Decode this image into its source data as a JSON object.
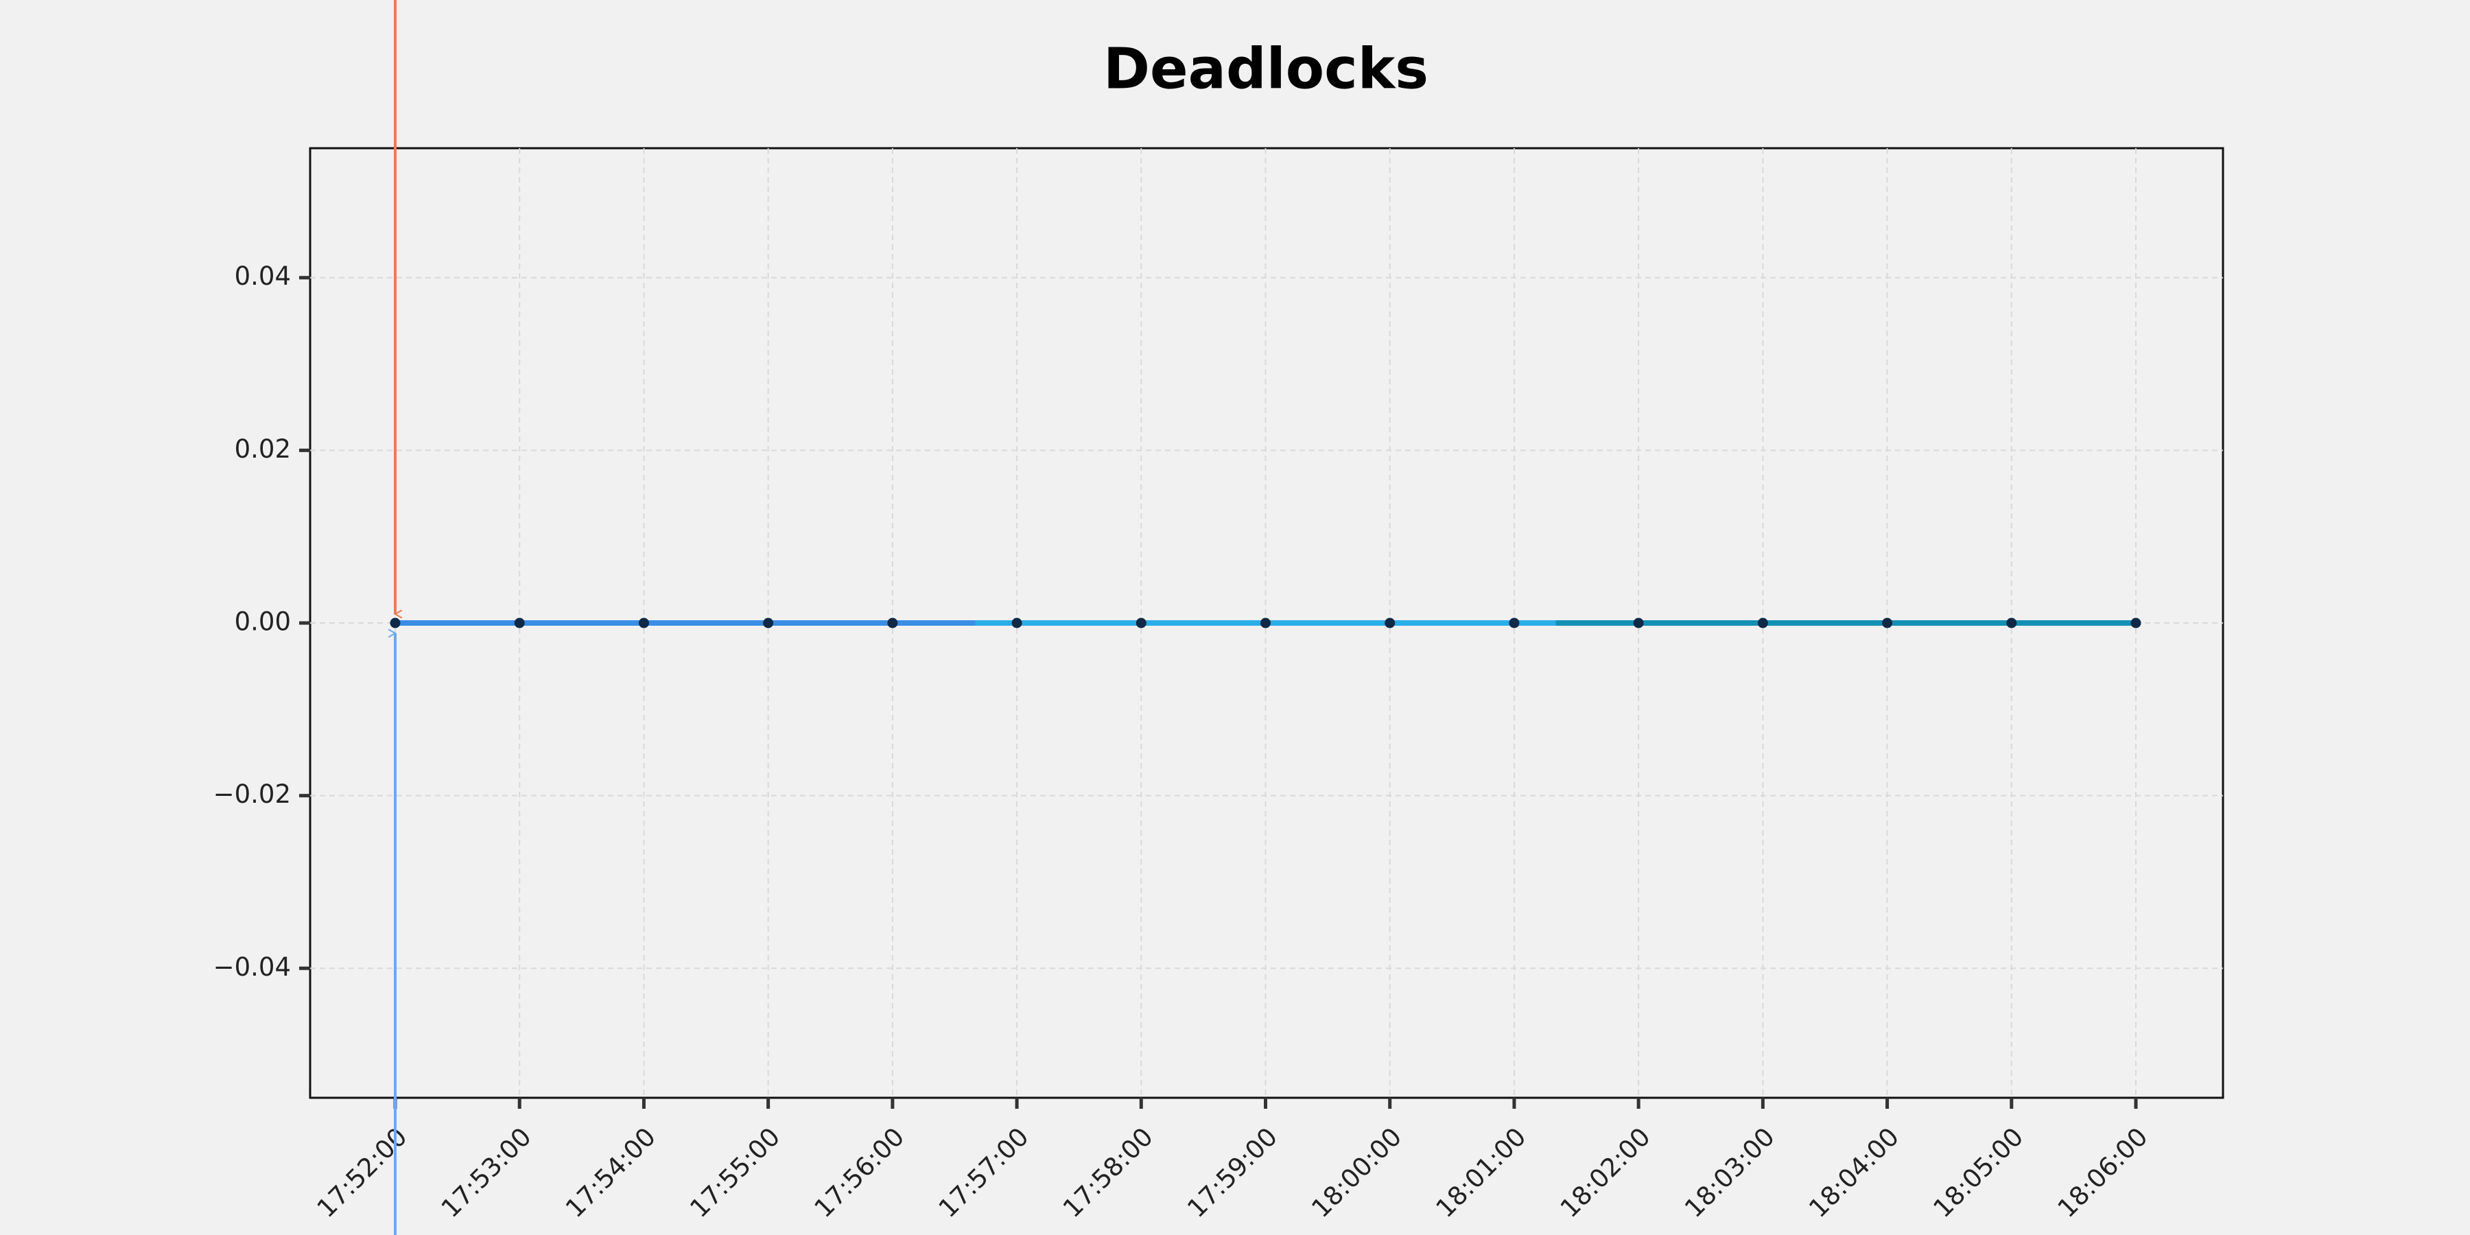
{
  "chart_data": {
    "type": "line",
    "title": "Deadlocks",
    "categories": [
      "17:52:00",
      "17:53:00",
      "17:54:00",
      "17:55:00",
      "17:56:00",
      "17:57:00",
      "17:58:00",
      "17:59:00",
      "18:00:00",
      "18:01:00",
      "18:02:00",
      "18:03:00",
      "18:04:00",
      "18:05:00",
      "18:06:00"
    ],
    "series": [
      {
        "values": [
          0,
          0,
          0,
          0,
          0,
          0,
          0,
          0,
          0,
          0,
          0,
          0,
          0,
          0,
          0
        ],
        "color": [
          "#3a8ee6",
          "#2aaee8",
          "#1590b5"
        ],
        "marker_color": "#0f2947"
      }
    ],
    "ylim": [
      -0.055,
      0.055
    ],
    "yticks": [
      {
        "value": -0.04,
        "label": "−0.04"
      },
      {
        "value": -0.02,
        "label": "−0.02"
      },
      {
        "value": 0,
        "label": "0.00"
      },
      0.02,
      0.04
    ],
    "grid": true
  }
}
